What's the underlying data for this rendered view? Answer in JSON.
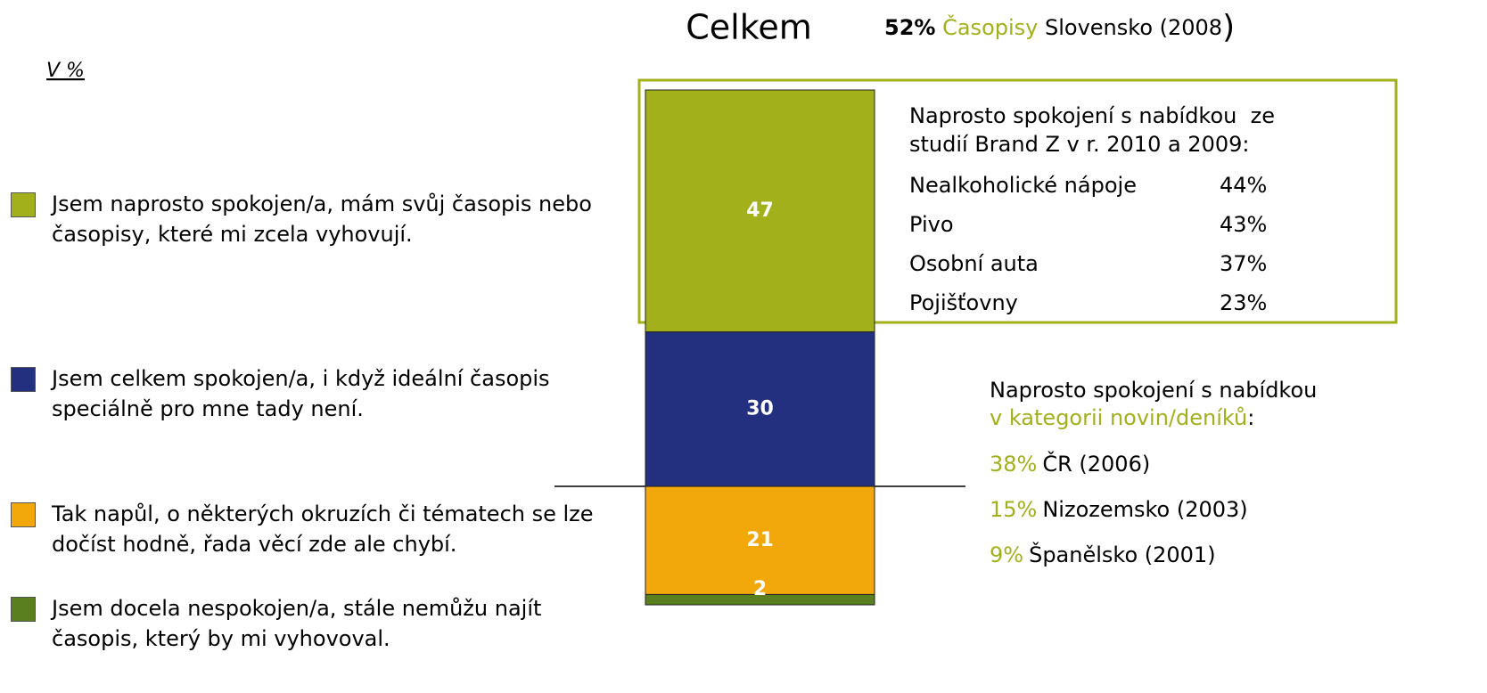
{
  "chart_data": {
    "type": "stacked_bar",
    "title": "Celkem",
    "unit_label": "V %",
    "series": [
      {
        "name": "Jsem naprosto spokojen/a, mám svůj časopis nebo časopisy, které mi zcela vyhovují.",
        "color": "#a2b11b",
        "values": [
          47
        ]
      },
      {
        "name": "Jsem celkem spokojen/a, i když ideální časopis speciálně pro mne tady není.",
        "color": "#22307f",
        "values": [
          30
        ]
      },
      {
        "name": "Tak napůl, o některých okruzích či tématech se lze dočíst hodně, řada věcí zde ale chybí.",
        "color": "#f2a70a",
        "values": [
          21
        ]
      },
      {
        "name": "Jsem docela nespokojen/a, stále nemůžu najít časopis, který by mi vyhovoval.",
        "color": "#5a7f1f",
        "values": [
          2
        ]
      }
    ],
    "top_note": [
      "52%",
      "Časopisy",
      "Slovensko (2008",
      ")"
    ],
    "box_note": {
      "heading": [
        "Naprosto spokojení s nabídkou  ze",
        "studií Brand Z v r. 2010 a 2009:"
      ],
      "rows": [
        [
          "Nealkoholické nápoje",
          "44%"
        ],
        [
          "Pivo",
          "43%"
        ],
        [
          "Osobní auta",
          "37%"
        ],
        [
          "Pojišťovny",
          "23%"
        ]
      ]
    },
    "news_note": {
      "heading": [
        "Naprosto spokojení s nabídkou",
        "v kategorii novin/deníků",
        ":"
      ],
      "rows": [
        [
          "38%",
          "ČR (2006)"
        ],
        [
          "15%",
          "Nizozemsko (2003)"
        ],
        [
          "9%",
          "Španělsko (2001)"
        ]
      ]
    }
  }
}
